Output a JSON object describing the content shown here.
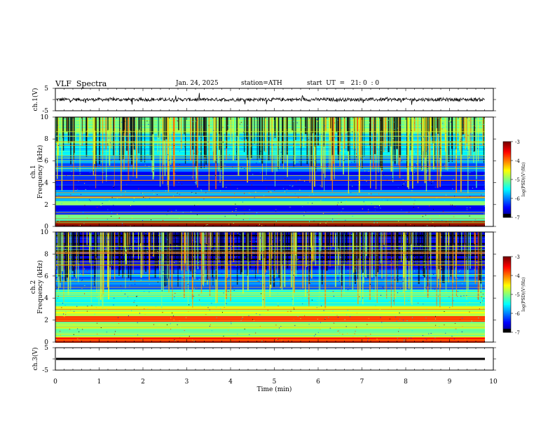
{
  "header": {
    "title": "VLF  Spectra",
    "date": "Jan. 24, 2025",
    "station": "station=ATH",
    "start": "start  UT  =   21: 0  : 0"
  },
  "chart_data": [
    {
      "type": "line",
      "panel": "ch1-waveform",
      "ylabel": "ch.1(V)",
      "ylim": [
        -5,
        5
      ],
      "yticks": [
        "5",
        "-5"
      ],
      "xlim": [
        0,
        10
      ],
      "series": [
        {
          "baseline": 0,
          "noise_amplitude": 1.5
        }
      ]
    },
    {
      "type": "heatmap",
      "panel": "ch1-spectrogram",
      "ylabel": "ch.1\nFrequency (kHz)",
      "ylabel_lines": [
        "ch.1",
        "Frequency  (kHz)"
      ],
      "ylim": [
        0,
        10
      ],
      "yticks": [
        "0",
        "2",
        "4",
        "6",
        "8",
        "10"
      ],
      "xlim": [
        0,
        9.8
      ],
      "colorbar": {
        "label": "log(PSD)(V²/Hz)",
        "range": [
          -7,
          -3
        ],
        "ticks": [
          "-3",
          "-4",
          "-5",
          "-6",
          "-7"
        ]
      },
      "bands": [
        {
          "f_lo": 0.0,
          "f_hi": 0.5,
          "level": -2.8
        },
        {
          "f_lo": 0.5,
          "f_hi": 1.0,
          "level": -5.2
        },
        {
          "f_lo": 1.0,
          "f_hi": 1.9,
          "level": -6.4
        },
        {
          "f_lo": 1.9,
          "f_hi": 2.3,
          "level": -5.0
        },
        {
          "f_lo": 2.3,
          "f_hi": 3.3,
          "level": -5.9
        },
        {
          "f_lo": 3.3,
          "f_hi": 5.0,
          "level": -6.5
        },
        {
          "f_lo": 5.0,
          "f_hi": 6.5,
          "level": -6.0
        },
        {
          "f_lo": 6.5,
          "f_hi": 8.5,
          "level": -5.6
        },
        {
          "f_lo": 8.5,
          "f_hi": 10.0,
          "level": -4.9
        }
      ]
    },
    {
      "type": "heatmap",
      "panel": "ch2-spectrogram",
      "ylabel_lines": [
        "ch.2",
        "Frequency  (kHz)"
      ],
      "ylim": [
        0,
        10
      ],
      "yticks": [
        "0",
        "2",
        "4",
        "6",
        "8",
        "10"
      ],
      "xlim": [
        0,
        9.8
      ],
      "colorbar": {
        "label": "log(PSD)(V²/Hz)",
        "range": [
          -7,
          -3
        ],
        "ticks": [
          "-3",
          "-4",
          "-5",
          "-6",
          "-7"
        ]
      },
      "bands": [
        {
          "f_lo": 0.0,
          "f_hi": 0.4,
          "level": -3.5
        },
        {
          "f_lo": 0.4,
          "f_hi": 1.8,
          "level": -5.0
        },
        {
          "f_lo": 1.8,
          "f_hi": 2.3,
          "level": -3.6
        },
        {
          "f_lo": 2.3,
          "f_hi": 3.2,
          "level": -4.6
        },
        {
          "f_lo": 3.2,
          "f_hi": 4.8,
          "level": -5.3
        },
        {
          "f_lo": 4.8,
          "f_hi": 6.5,
          "level": -6.0
        },
        {
          "f_lo": 6.5,
          "f_hi": 10.0,
          "level": -6.6
        }
      ]
    },
    {
      "type": "line",
      "panel": "ch3-waveform",
      "ylabel": "ch.3(V)",
      "ylim": [
        -5,
        5
      ],
      "yticks": [
        "5",
        "-5"
      ],
      "xlim": [
        0,
        10
      ],
      "xlabel": "Time  (min)",
      "xticks": [
        "0",
        "1",
        "2",
        "3",
        "4",
        "5",
        "6",
        "7",
        "8",
        "9",
        "10"
      ],
      "series": [
        {
          "baseline": 0,
          "noise_amplitude": 0
        }
      ]
    }
  ]
}
